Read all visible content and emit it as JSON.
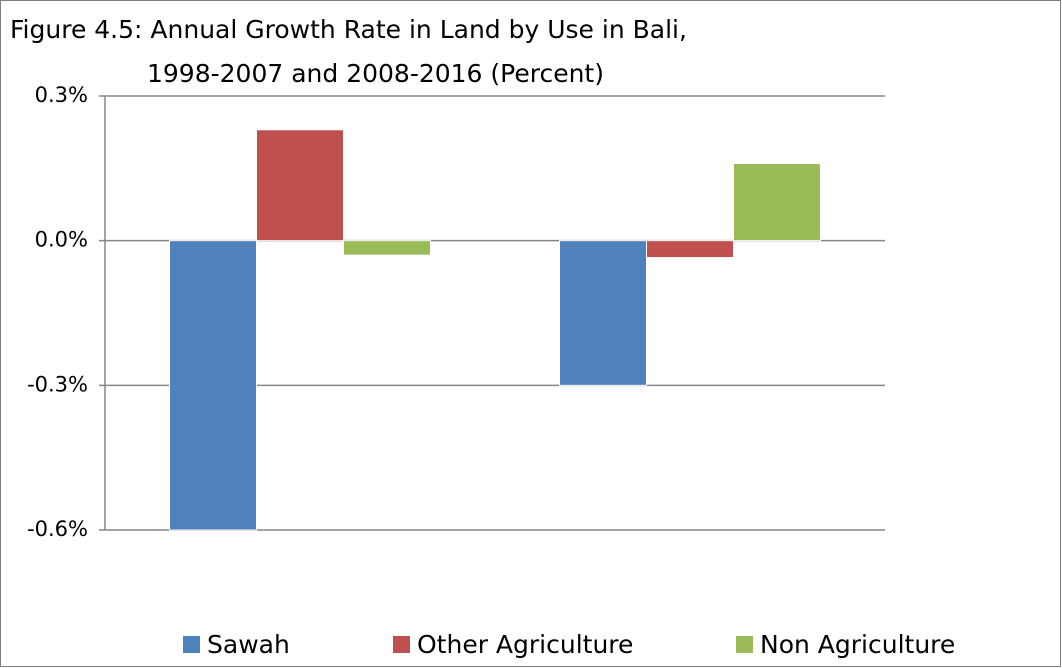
{
  "chart_data": {
    "type": "bar",
    "title": [
      "Figure 4.5: Annual Growth Rate in Land by Use in Bali,",
      "1998-2007 and 2008-2016 (Percent)"
    ],
    "categories": [
      null,
      null
    ],
    "series": [
      {
        "name": "Sawah",
        "color": "#4f81bd",
        "values": [
          -0.6,
          -0.3
        ]
      },
      {
        "name": "Other Agriculture",
        "color": "#c0504d",
        "values": [
          0.23,
          -0.035
        ]
      },
      {
        "name": "Non Agriculture",
        "color": "#9bbb59",
        "values": [
          -0.03,
          0.16
        ]
      }
    ],
    "ylim": [
      -0.6,
      0.3
    ],
    "yticks": [
      {
        "value": -0.6,
        "label": "-0.6%"
      },
      {
        "value": -0.3,
        "label": "-0.3%"
      },
      {
        "value": 0,
        "label": "0.0%"
      },
      {
        "value": 0.3,
        "label": "0.3%"
      }
    ],
    "grid": true,
    "legend": "bottom"
  }
}
